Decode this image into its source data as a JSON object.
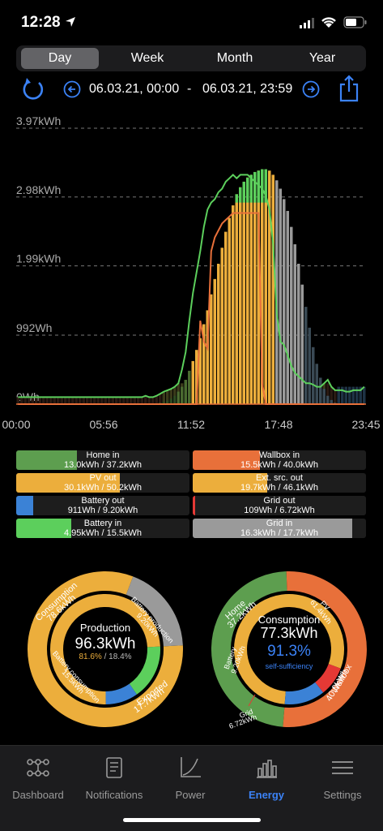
{
  "status": {
    "time": "12:28"
  },
  "tabs": [
    {
      "label": "Day",
      "active": true
    },
    {
      "label": "Week",
      "active": false
    },
    {
      "label": "Month",
      "active": false
    },
    {
      "label": "Year",
      "active": false
    }
  ],
  "range": {
    "start": "06.03.21, 00:00",
    "separator": "-",
    "end": "06.03.21, 23:59"
  },
  "chart_data": {
    "type": "bar",
    "y_ticks": [
      "3.97kWh",
      "2.98kWh",
      "1.99kWh",
      "992Wh",
      "0Wh"
    ],
    "x_ticks": [
      "00:00",
      "05:56",
      "11:52",
      "17:48",
      "23:45"
    ],
    "ylim": [
      0,
      3.97
    ],
    "series": [
      {
        "name": "Home in",
        "color": "#5d9e4f"
      },
      {
        "name": "Wallbox in",
        "color": "#e8703a"
      },
      {
        "name": "PV out",
        "color": "#ecae3c"
      },
      {
        "name": "Battery out",
        "color": "#3b82d6"
      },
      {
        "name": "Battery in",
        "color": "#5ccf5c"
      },
      {
        "name": "Grid in",
        "color": "#9a9a9a"
      }
    ],
    "production_kwh": [
      0,
      0,
      0,
      0,
      0,
      0,
      0,
      0,
      0,
      0,
      0,
      0,
      0,
      0,
      0,
      0,
      0,
      0,
      0,
      0,
      0,
      0,
      0,
      0,
      0,
      0,
      0,
      0,
      0,
      0,
      0,
      0,
      0,
      0,
      0,
      0,
      0,
      0,
      0.01,
      0.02,
      0.03,
      0.05,
      0.08,
      0.12,
      0.18,
      0.25,
      0.35,
      0.48,
      0.62,
      0.78,
      0.95,
      1.15,
      1.35,
      1.58,
      1.8,
      2.02,
      2.25,
      2.48,
      2.68,
      2.86,
      3.02,
      3.12,
      3.2,
      3.26,
      3.3,
      3.34,
      3.36,
      3.38,
      3.38,
      3.36,
      3.3,
      3.22,
      3.1,
      2.95,
      2.78,
      2.55,
      2.3,
      2.02,
      1.72,
      1.4,
      1.1,
      0.82,
      0.58,
      0.38,
      0.22,
      0.12,
      0.06,
      0.02,
      0,
      0,
      0,
      0,
      0,
      0,
      0,
      0
    ],
    "home_line_kwh": [
      0.1,
      0.1,
      0.1,
      0.1,
      0.1,
      0.1,
      0.1,
      0.1,
      0.1,
      0.1,
      0.1,
      0.1,
      0.1,
      0.1,
      0.1,
      0.1,
      0.1,
      0.1,
      0.1,
      0.1,
      0.1,
      0.1,
      0.1,
      0.1,
      0.1,
      0.1,
      0.1,
      0.1,
      0.1,
      0.1,
      0.1,
      0.1,
      0.1,
      0.1,
      0.1,
      0.12,
      0.1,
      0.1,
      0.12,
      0.15,
      0.18,
      0.2,
      0.22,
      0.25,
      0.3,
      0.5,
      0.75,
      1.2,
      1.6,
      1.9,
      2.2,
      2.55,
      2.8,
      2.9,
      2.95,
      3.05,
      3.1,
      3.2,
      3.25,
      3.3,
      3.25,
      3.3,
      3.3,
      3.3,
      3.25,
      3.2,
      3.15,
      3.1,
      3.0,
      2.8,
      2.3,
      1.3,
      0.9,
      0.85,
      0.7,
      0.55,
      0.45,
      0.4,
      0.35,
      0.3,
      0.3,
      0.28,
      0.25,
      0.25,
      0.3,
      0.35,
      0.25,
      0.2,
      0.2,
      0.2,
      0.18,
      0.18,
      0.2,
      0.2,
      0.2,
      0.25
    ],
    "wallbox_line_kwh": [
      0,
      0,
      0,
      0,
      0,
      0,
      0,
      0,
      0,
      0,
      0,
      0,
      0,
      0,
      0,
      0,
      0,
      0,
      0,
      0,
      0,
      0,
      0,
      0,
      0,
      0,
      0,
      0,
      0,
      0,
      0,
      0,
      0,
      0,
      0,
      0,
      0,
      0,
      0,
      0,
      0,
      0,
      0,
      0,
      0,
      0,
      0,
      0,
      0,
      0,
      1.2,
      0.9,
      0.8,
      2.2,
      2.4,
      2.5,
      2.6,
      2.65,
      2.7,
      2.75,
      2.75,
      2.75,
      2.75,
      2.75,
      2.75,
      2.75,
      2.75,
      0.3,
      0,
      0,
      0,
      0,
      0,
      0,
      0,
      0,
      0,
      0,
      0,
      0,
      0,
      0,
      0,
      0,
      0,
      0,
      0,
      0,
      0,
      0,
      0,
      0,
      0,
      0,
      0,
      0
    ]
  },
  "legend": [
    {
      "label": "Home in",
      "value": "13.0kWh / 37.2kWh",
      "color": "#5d9e4f",
      "fill": 0.35
    },
    {
      "label": "Wallbox in",
      "value": "15.5kWh / 40.0kWh",
      "color": "#e8703a",
      "fill": 0.39
    },
    {
      "label": "PV out",
      "value": "30.1kWh / 50.2kWh",
      "color": "#ecae3c",
      "fill": 0.6
    },
    {
      "label": "Ext. src. out",
      "value": "19.7kWh / 46.1kWh",
      "color": "#ecae3c",
      "fill": 0.43
    },
    {
      "label": "Battery out",
      "value": "911Wh / 9.20kWh",
      "color": "#3b82d6",
      "fill": 0.1
    },
    {
      "label": "Grid out",
      "value": "109Wh / 6.72kWh",
      "color": "#e53935",
      "fill": 0.016
    },
    {
      "label": "Battery in",
      "value": "4.95kWh / 15.5kWh",
      "color": "#5ccf5c",
      "fill": 0.32
    },
    {
      "label": "Grid in",
      "value": "16.3kWh / 17.7kWh",
      "color": "#9a9a9a",
      "fill": 0.92
    }
  ],
  "production": {
    "title": "Production",
    "value": "96.3kWh",
    "pct_self": "81.6%",
    "pct_sep": " / ",
    "pct_export": "18.4%",
    "labels": [
      "Consumption",
      "78.6kWh",
      "Battery production",
      "9.20kWh",
      "Exported",
      "17.7kWh",
      "Battery consumption",
      "15.5kWh"
    ],
    "outer": [
      {
        "value": 78.6,
        "color": "#ecae3c"
      },
      {
        "value": 17.7,
        "color": "#9a9a9a"
      }
    ],
    "inner": [
      {
        "value": 15.5,
        "color": "#5ccf5c"
      },
      {
        "value": 9.2,
        "color": "#3b82d6"
      },
      {
        "value": 71.6,
        "color": "#ecae3c"
      }
    ]
  },
  "consumption": {
    "title": "Consumption",
    "value": "77.3kWh",
    "pct": "91.3%",
    "sub": "self-sufficiency",
    "labels": [
      "Home",
      "37.2kWh",
      "PV",
      "61.4kWh",
      "Wallbox",
      "40.0kWh",
      "Battery",
      "9.20kWh",
      "Grid",
      "6.72kWh"
    ],
    "outer": [
      {
        "value": 37.2,
        "color": "#5d9e4f"
      },
      {
        "value": 40.0,
        "color": "#e8703a"
      }
    ],
    "inner": [
      {
        "value": 61.4,
        "color": "#ecae3c"
      },
      {
        "value": 6.72,
        "color": "#e53935"
      },
      {
        "value": 9.2,
        "color": "#3b82d6"
      }
    ]
  },
  "nav": [
    {
      "label": "Dashboard",
      "icon": "dashboard-icon"
    },
    {
      "label": "Notifications",
      "icon": "notifications-icon"
    },
    {
      "label": "Power",
      "icon": "power-icon"
    },
    {
      "label": "Energy",
      "icon": "energy-icon",
      "active": true
    },
    {
      "label": "Settings",
      "icon": "settings-icon"
    }
  ]
}
